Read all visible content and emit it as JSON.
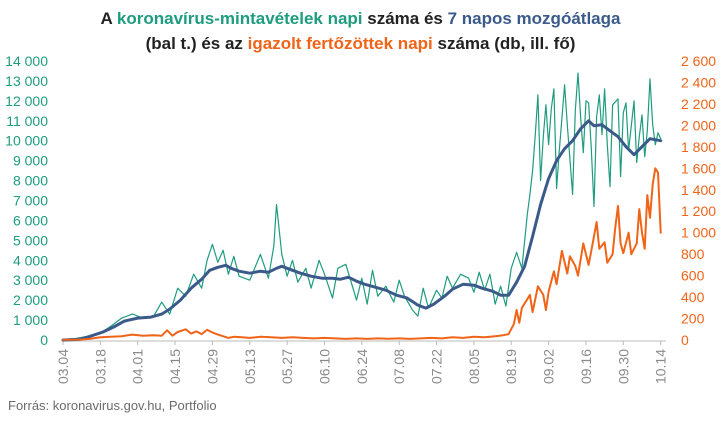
{
  "title": {
    "line1": [
      {
        "text": "A ",
        "color": "#222222"
      },
      {
        "text": "koronavírus-mintavételek napi",
        "color": "#1e9c7f"
      },
      {
        "text": " száma és ",
        "color": "#222222"
      },
      {
        "text": "7 napos mozgóátlaga",
        "color": "#3a5a8a"
      }
    ],
    "line2": [
      {
        "text": "(bal t.) és az ",
        "color": "#222222"
      },
      {
        "text": "igazolt fertőzöttek napi",
        "color": "#f06418"
      },
      {
        "text": " száma (db, ill. fő)",
        "color": "#222222"
      }
    ]
  },
  "source": "Forrás: koronavirus.gov.hu, Portfolio",
  "colors": {
    "tests": "#1e9c7f",
    "avg": "#3a5a8a",
    "cases": "#f06418",
    "left_axis": "#1e9c7f",
    "right_axis": "#f06418",
    "x_axis": "#8a8a8a",
    "baseline": "#bbbbbb"
  },
  "chart_data": {
    "type": "line",
    "x_start": "03.04",
    "days": 227,
    "x_tick_labels": [
      "03.04",
      "03.18",
      "04.01",
      "04.15",
      "04.29",
      "05.13",
      "05.27",
      "06.10",
      "06.24",
      "07.08",
      "07.22",
      "08.05",
      "08.19",
      "09.02",
      "09.16",
      "09.30",
      "10.14"
    ],
    "x_tick_step_days": 14,
    "y_left": {
      "ylim": [
        0,
        14000
      ],
      "ticks": [
        0,
        1000,
        2000,
        3000,
        4000,
        5000,
        6000,
        7000,
        8000,
        9000,
        10000,
        11000,
        12000,
        13000,
        14000
      ],
      "tick_labels": [
        "0",
        "1 000",
        "2 000",
        "3 000",
        "4 000",
        "5 000",
        "6 000",
        "7 000",
        "8 000",
        "9 000",
        "10 000",
        "11 000",
        "12 000",
        "13 000",
        "14 000"
      ]
    },
    "y_right": {
      "ylim": [
        0,
        2600
      ],
      "ticks": [
        0,
        200,
        400,
        600,
        800,
        1000,
        1200,
        1400,
        1600,
        1800,
        2000,
        2200,
        2400,
        2600
      ],
      "tick_labels": [
        "0",
        "200",
        "400",
        "600",
        "800",
        "1 000",
        "1 200",
        "1 400",
        "1 600",
        "1 800",
        "2 000",
        "2 200",
        "2 400",
        "2 600"
      ]
    },
    "series": [
      {
        "name": "koronavírus-mintavételek napi száma",
        "axis": "left",
        "keypoints": [
          [
            0,
            20
          ],
          [
            5,
            80
          ],
          [
            10,
            200
          ],
          [
            14,
            350
          ],
          [
            18,
            700
          ],
          [
            22,
            1100
          ],
          [
            26,
            1300
          ],
          [
            30,
            1100
          ],
          [
            34,
            1200
          ],
          [
            37,
            1900
          ],
          [
            40,
            1300
          ],
          [
            43,
            2600
          ],
          [
            46,
            2200
          ],
          [
            49,
            3300
          ],
          [
            52,
            2600
          ],
          [
            54,
            4000
          ],
          [
            56,
            4800
          ],
          [
            58,
            3900
          ],
          [
            60,
            4500
          ],
          [
            62,
            3300
          ],
          [
            64,
            4200
          ],
          [
            66,
            3200
          ],
          [
            70,
            3000
          ],
          [
            74,
            4300
          ],
          [
            77,
            3100
          ],
          [
            79,
            4700
          ],
          [
            80,
            6800
          ],
          [
            82,
            4300
          ],
          [
            84,
            3200
          ],
          [
            86,
            4000
          ],
          [
            88,
            2900
          ],
          [
            91,
            3600
          ],
          [
            93,
            2600
          ],
          [
            96,
            4000
          ],
          [
            98,
            3300
          ],
          [
            101,
            2100
          ],
          [
            103,
            3600
          ],
          [
            106,
            3800
          ],
          [
            108,
            2900
          ],
          [
            110,
            2000
          ],
          [
            112,
            3100
          ],
          [
            114,
            1800
          ],
          [
            116,
            3500
          ],
          [
            118,
            2200
          ],
          [
            121,
            2700
          ],
          [
            124,
            1900
          ],
          [
            126,
            3000
          ],
          [
            128,
            2200
          ],
          [
            131,
            1500
          ],
          [
            133,
            1200
          ],
          [
            135,
            2600
          ],
          [
            137,
            1600
          ],
          [
            140,
            2500
          ],
          [
            142,
            2100
          ],
          [
            144,
            3200
          ],
          [
            146,
            2600
          ],
          [
            149,
            3300
          ],
          [
            152,
            3100
          ],
          [
            154,
            2400
          ],
          [
            156,
            3400
          ],
          [
            158,
            2500
          ],
          [
            160,
            3300
          ],
          [
            162,
            1800
          ],
          [
            164,
            2700
          ],
          [
            166,
            1700
          ],
          [
            168,
            3600
          ],
          [
            170,
            4400
          ],
          [
            172,
            3600
          ],
          [
            174,
            6300
          ],
          [
            175,
            7300
          ],
          [
            176,
            8500
          ],
          [
            177,
            10300
          ],
          [
            178,
            12300
          ],
          [
            179,
            8000
          ],
          [
            180,
            10200
          ],
          [
            181,
            11800
          ],
          [
            182,
            9800
          ],
          [
            183,
            11600
          ],
          [
            184,
            12600
          ],
          [
            185,
            7600
          ],
          [
            186,
            9500
          ],
          [
            188,
            12800
          ],
          [
            189,
            10800
          ],
          [
            191,
            7300
          ],
          [
            192,
            11500
          ],
          [
            193,
            13400
          ],
          [
            194,
            11200
          ],
          [
            195,
            9400
          ],
          [
            196,
            12000
          ],
          [
            197,
            11900
          ],
          [
            198,
            9600
          ],
          [
            199,
            6700
          ],
          [
            200,
            11200
          ],
          [
            201,
            12300
          ],
          [
            202,
            10300
          ],
          [
            203,
            12600
          ],
          [
            204,
            9800
          ],
          [
            205,
            7700
          ],
          [
            206,
            11800
          ],
          [
            208,
            12100
          ],
          [
            209,
            8200
          ],
          [
            210,
            11400
          ],
          [
            211,
            11900
          ],
          [
            212,
            9500
          ],
          [
            214,
            12000
          ],
          [
            215,
            8900
          ],
          [
            216,
            10200
          ],
          [
            217,
            11300
          ],
          [
            218,
            9200
          ],
          [
            219,
            10500
          ],
          [
            220,
            13100
          ],
          [
            221,
            10800
          ],
          [
            222,
            9800
          ],
          [
            223,
            10400
          ],
          [
            224,
            10100
          ]
        ]
      },
      {
        "name": "7 napos mozgóátlaga",
        "axis": "left",
        "keypoints": [
          [
            0,
            0
          ],
          [
            6,
            30
          ],
          [
            10,
            180
          ],
          [
            15,
            400
          ],
          [
            19,
            650
          ],
          [
            23,
            950
          ],
          [
            28,
            1100
          ],
          [
            33,
            1150
          ],
          [
            37,
            1300
          ],
          [
            40,
            1550
          ],
          [
            44,
            2000
          ],
          [
            48,
            2600
          ],
          [
            52,
            3050
          ],
          [
            55,
            3500
          ],
          [
            58,
            3650
          ],
          [
            61,
            3750
          ],
          [
            63,
            3600
          ],
          [
            66,
            3450
          ],
          [
            70,
            3350
          ],
          [
            74,
            3450
          ],
          [
            77,
            3400
          ],
          [
            80,
            3600
          ],
          [
            82,
            3700
          ],
          [
            85,
            3550
          ],
          [
            89,
            3350
          ],
          [
            93,
            3200
          ],
          [
            97,
            3100
          ],
          [
            101,
            3100
          ],
          [
            104,
            3050
          ],
          [
            107,
            3150
          ],
          [
            110,
            2950
          ],
          [
            113,
            2800
          ],
          [
            117,
            2650
          ],
          [
            121,
            2500
          ],
          [
            125,
            2250
          ],
          [
            129,
            2100
          ],
          [
            133,
            1750
          ],
          [
            136,
            1600
          ],
          [
            139,
            1800
          ],
          [
            143,
            2200
          ],
          [
            146,
            2550
          ],
          [
            150,
            2800
          ],
          [
            154,
            2750
          ],
          [
            157,
            2600
          ],
          [
            161,
            2450
          ],
          [
            164,
            2250
          ],
          [
            167,
            2250
          ],
          [
            170,
            2900
          ],
          [
            173,
            3700
          ],
          [
            176,
            5200
          ],
          [
            179,
            6800
          ],
          [
            182,
            8100
          ],
          [
            185,
            9000
          ],
          [
            188,
            9600
          ],
          [
            191,
            10000
          ],
          [
            194,
            10600
          ],
          [
            197,
            11000
          ],
          [
            199,
            10750
          ],
          [
            202,
            10800
          ],
          [
            205,
            10500
          ],
          [
            208,
            10200
          ],
          [
            211,
            9700
          ],
          [
            214,
            9300
          ],
          [
            217,
            9700
          ],
          [
            220,
            10100
          ],
          [
            222,
            10050
          ],
          [
            224,
            10000
          ]
        ]
      },
      {
        "name": "igazolt fertőzöttek napi száma",
        "axis": "right",
        "keypoints": [
          [
            0,
            2
          ],
          [
            6,
            4
          ],
          [
            10,
            10
          ],
          [
            14,
            25
          ],
          [
            18,
            30
          ],
          [
            22,
            35
          ],
          [
            26,
            50
          ],
          [
            30,
            40
          ],
          [
            34,
            45
          ],
          [
            37,
            40
          ],
          [
            39,
            90
          ],
          [
            41,
            40
          ],
          [
            43,
            75
          ],
          [
            46,
            100
          ],
          [
            48,
            60
          ],
          [
            50,
            80
          ],
          [
            52,
            55
          ],
          [
            54,
            95
          ],
          [
            56,
            70
          ],
          [
            58,
            50
          ],
          [
            60,
            35
          ],
          [
            62,
            20
          ],
          [
            64,
            30
          ],
          [
            67,
            25
          ],
          [
            70,
            20
          ],
          [
            74,
            30
          ],
          [
            78,
            25
          ],
          [
            82,
            20
          ],
          [
            86,
            25
          ],
          [
            90,
            20
          ],
          [
            94,
            15
          ],
          [
            98,
            20
          ],
          [
            102,
            15
          ],
          [
            106,
            10
          ],
          [
            110,
            15
          ],
          [
            114,
            10
          ],
          [
            118,
            15
          ],
          [
            122,
            12
          ],
          [
            126,
            15
          ],
          [
            130,
            10
          ],
          [
            134,
            15
          ],
          [
            138,
            20
          ],
          [
            142,
            15
          ],
          [
            146,
            25
          ],
          [
            150,
            20
          ],
          [
            154,
            30
          ],
          [
            158,
            25
          ],
          [
            162,
            35
          ],
          [
            165,
            45
          ],
          [
            167,
            55
          ],
          [
            169,
            150
          ],
          [
            170,
            280
          ],
          [
            171,
            160
          ],
          [
            172,
            300
          ],
          [
            174,
            380
          ],
          [
            175,
            420
          ],
          [
            176,
            260
          ],
          [
            178,
            500
          ],
          [
            180,
            420
          ],
          [
            181,
            280
          ],
          [
            182,
            450
          ],
          [
            184,
            640
          ],
          [
            185,
            520
          ],
          [
            187,
            830
          ],
          [
            189,
            620
          ],
          [
            190,
            780
          ],
          [
            192,
            690
          ],
          [
            193,
            600
          ],
          [
            195,
            900
          ],
          [
            197,
            700
          ],
          [
            198,
            830
          ],
          [
            200,
            1100
          ],
          [
            201,
            850
          ],
          [
            203,
            910
          ],
          [
            204,
            720
          ],
          [
            206,
            800
          ],
          [
            207,
            1050
          ],
          [
            208,
            1250
          ],
          [
            209,
            900
          ],
          [
            210,
            810
          ],
          [
            212,
            1000
          ],
          [
            213,
            800
          ],
          [
            215,
            900
          ],
          [
            216,
            1220
          ],
          [
            217,
            1000
          ],
          [
            218,
            850
          ],
          [
            219,
            1350
          ],
          [
            220,
            1140
          ],
          [
            221,
            1450
          ],
          [
            222,
            1600
          ],
          [
            223,
            1560
          ],
          [
            224,
            1000
          ]
        ]
      }
    ],
    "grid": false,
    "legend": "none"
  }
}
